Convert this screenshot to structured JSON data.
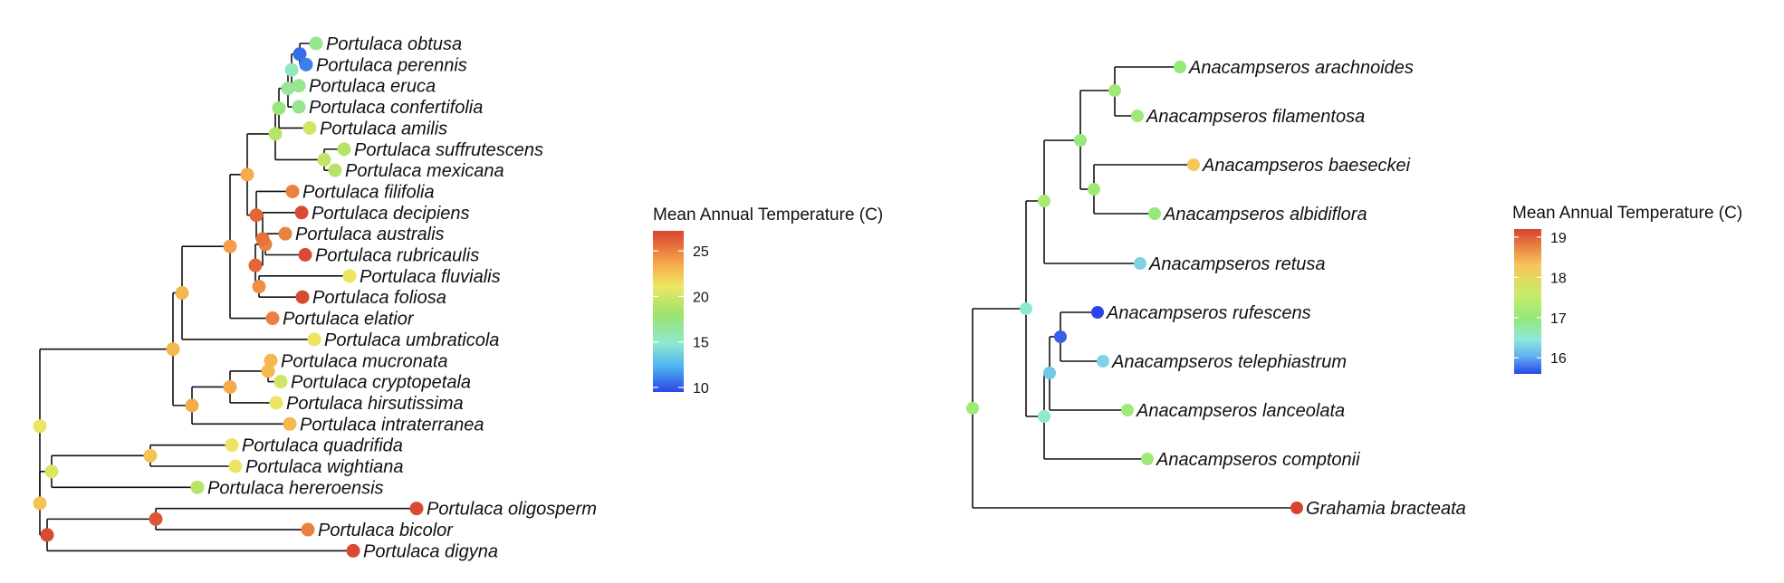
{
  "left_tree": {
    "tips": [
      {
        "label": "Portulaca obtusa",
        "value": 17
      },
      {
        "label": "Portulaca perennis",
        "value": 11
      },
      {
        "label": "Portulaca eruca",
        "value": 17
      },
      {
        "label": "Portulaca confertifolia",
        "value": 17
      },
      {
        "label": "Portulaca amilis",
        "value": 20
      },
      {
        "label": "Portulaca suffrutescens",
        "value": 19
      },
      {
        "label": "Portulaca mexicana",
        "value": 19
      },
      {
        "label": "Portulaca filifolia",
        "value": 25
      },
      {
        "label": "Portulaca decipiens",
        "value": 27
      },
      {
        "label": "Portulaca australis",
        "value": 25
      },
      {
        "label": "Portulaca rubricaulis",
        "value": 27
      },
      {
        "label": "Portulaca fluvialis",
        "value": 21
      },
      {
        "label": "Portulaca foliosa",
        "value": 27
      },
      {
        "label": "Portulaca elatior",
        "value": 25
      },
      {
        "label": "Portulaca umbraticola",
        "value": 21
      },
      {
        "label": "Portulaca mucronata",
        "value": 23
      },
      {
        "label": "Portulaca cryptopetala",
        "value": 20
      },
      {
        "label": "Portulaca hirsutissima",
        "value": 21
      },
      {
        "label": "Portulaca intraterranea",
        "value": 23
      },
      {
        "label": "Portulaca quadrifida",
        "value": 21
      },
      {
        "label": "Portulaca wightiana",
        "value": 21
      },
      {
        "label": "Portulaca hereroensis",
        "value": 19
      },
      {
        "label": "Portulaca oligosperm",
        "value": 27
      },
      {
        "label": "Portulaca bicolor",
        "value": 25
      },
      {
        "label": "Portulaca digyna",
        "value": 27
      }
    ],
    "legend": {
      "title": "Mean Annual Temperature (C)",
      "ticks": [
        "25",
        "20",
        "15",
        "10"
      ],
      "min": 9.5,
      "max": 27.2
    }
  },
  "right_tree": {
    "tips": [
      {
        "label": "Anacampseros arachnoides",
        "value": 17.0
      },
      {
        "label": "Anacampseros filamentosa",
        "value": 17.1
      },
      {
        "label": "Anacampseros baeseckei",
        "value": 18.3
      },
      {
        "label": "Anacampseros albidiflora",
        "value": 17.0
      },
      {
        "label": "Anacampseros retusa",
        "value": 16.3
      },
      {
        "label": "Anacampseros rufescens",
        "value": 15.6
      },
      {
        "label": "Anacampseros telephiastrum",
        "value": 16.3
      },
      {
        "label": "Anacampseros lanceolata",
        "value": 17.1
      },
      {
        "label": "Anacampseros comptonii",
        "value": 17.1
      },
      {
        "label": "Grahamia bracteata",
        "value": 19.2
      }
    ],
    "legend": {
      "title": "Mean Annual Temperature (C)",
      "ticks": [
        "19",
        "18",
        "17",
        "16"
      ],
      "min": 15.6,
      "max": 19.2
    }
  },
  "colors": {
    "branch": "#111111",
    "gradient": [
      "#d8432f",
      "#f7c65a",
      "#f0e562",
      "#9be46e",
      "#8fe8d0",
      "#6fc9f2",
      "#2b55e6"
    ]
  }
}
